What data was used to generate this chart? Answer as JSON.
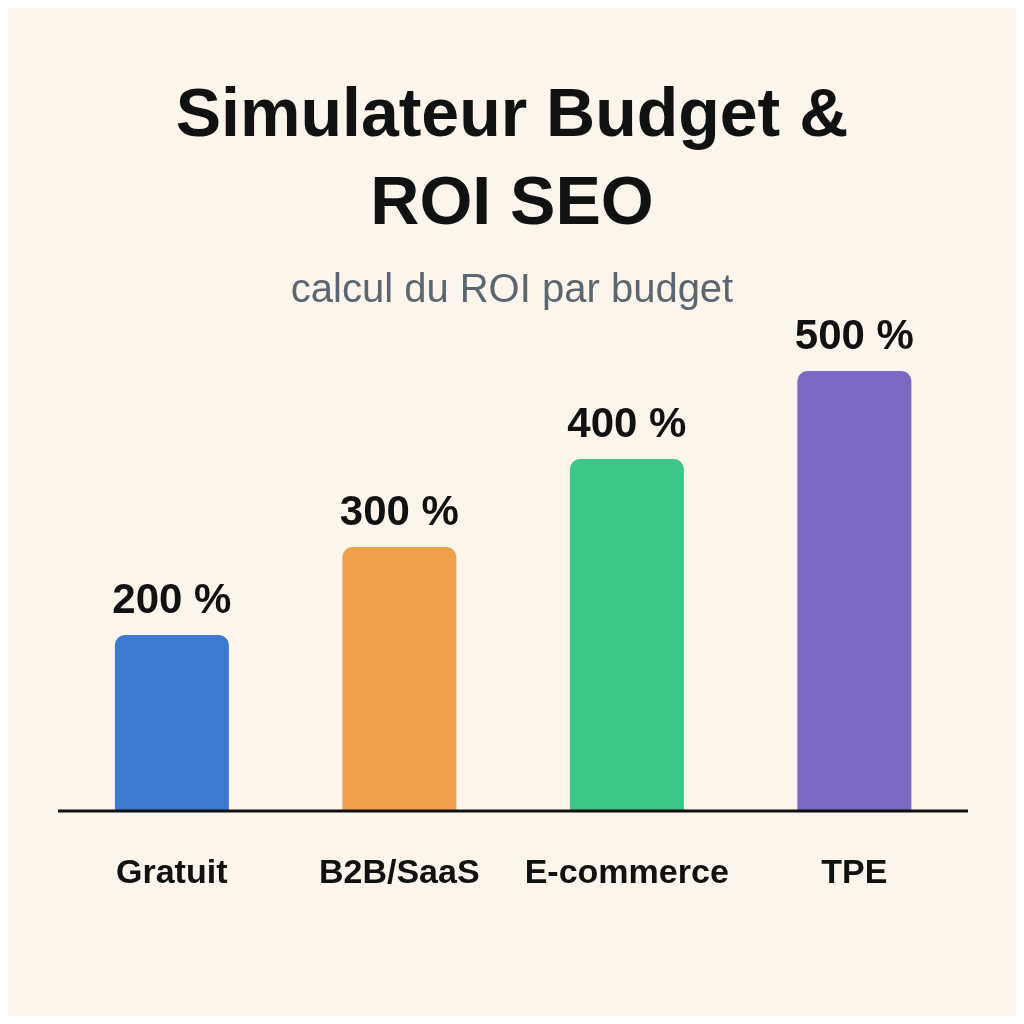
{
  "chart_data": {
    "type": "bar",
    "title": "Simulateur Budget & ROI SEO",
    "subtitle": "calcul du ROI par budget",
    "categories": [
      "Gratuit",
      "B2B/SaaS",
      "E-commerce",
      "TPE"
    ],
    "values": [
      200,
      300,
      400,
      500
    ],
    "colors": [
      "#3d7bd0",
      "#f0a04b",
      "#3cc68a",
      "#7b68c0"
    ],
    "value_labels": [
      "200 %",
      "300 %",
      "400 %",
      "500 %"
    ]
  }
}
